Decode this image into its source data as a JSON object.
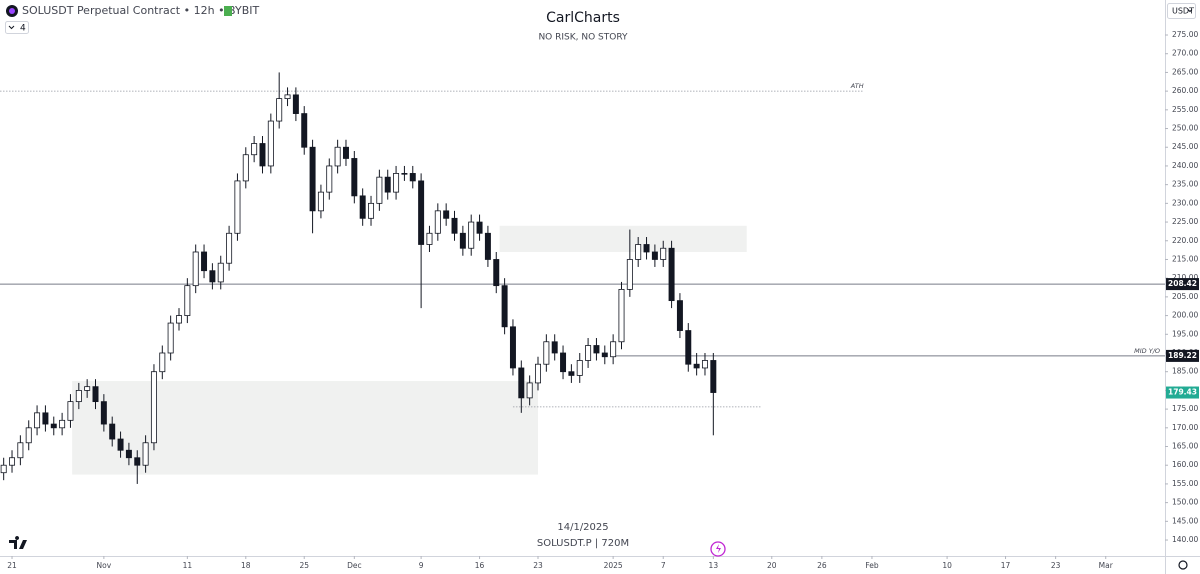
{
  "header": {
    "symbol": "SOLUSDT Perpetual Contract • 12h • BYBIT",
    "indicator_count": "4",
    "currency": "USDT"
  },
  "chart_data": {
    "type": "candlestick",
    "title": "CarlCharts",
    "subtitle": "NO RISK, NO STORY",
    "footer_date": "14/1/2025",
    "footer_symbol": "SOLUSDT.P | 720M",
    "up_color": "#ffffff",
    "down_color": "#131722",
    "outline_color": "#131722",
    "last_color": "#22ab94",
    "x": [
      -1,
      0,
      1,
      2,
      3,
      4,
      5,
      6,
      7,
      8,
      9,
      10,
      11,
      12,
      13,
      14,
      15,
      16,
      17,
      18,
      19,
      20,
      21,
      22,
      23,
      24,
      25,
      26,
      27,
      28,
      29,
      30,
      31,
      32,
      33,
      34,
      35,
      36,
      37,
      38,
      39,
      40,
      41,
      42,
      43,
      44,
      45,
      46,
      47,
      48,
      49,
      50,
      51,
      52,
      53,
      54,
      55,
      56,
      57,
      58,
      59,
      60,
      61,
      62,
      63,
      64,
      65,
      66,
      67,
      68,
      69,
      70,
      71,
      72,
      73,
      74,
      75,
      76,
      77,
      78,
      79,
      80,
      81,
      82,
      83,
      84
    ],
    "open": [
      158,
      160,
      162,
      166,
      170,
      174,
      171,
      170,
      172,
      177,
      180,
      181,
      177,
      171,
      167,
      164,
      162,
      160,
      166,
      185,
      190,
      198,
      200,
      208,
      217,
      212,
      209,
      214,
      222,
      236,
      243,
      246,
      240,
      252,
      258,
      259,
      254,
      245,
      228,
      233,
      240,
      245,
      242,
      232,
      226,
      230,
      237,
      233,
      238,
      238,
      236,
      219,
      222,
      228,
      226,
      222,
      218,
      225,
      222,
      215,
      208,
      197,
      186,
      178,
      182,
      187,
      193,
      190,
      185,
      184,
      188,
      192,
      190,
      189,
      193,
      207,
      215,
      219,
      217,
      215,
      218,
      204,
      196,
      187,
      186,
      188
    ],
    "high": [
      162,
      164,
      168,
      172,
      176,
      176,
      173,
      174,
      179,
      182,
      183,
      183,
      179,
      173,
      169,
      166,
      164,
      168,
      187,
      192,
      200,
      202,
      210,
      219,
      219,
      214,
      216,
      224,
      238,
      245,
      248,
      248,
      254,
      265,
      261,
      261,
      256,
      247,
      235,
      242,
      247,
      247,
      244,
      234,
      232,
      239,
      239,
      240,
      240,
      240,
      238,
      224,
      230,
      230,
      228,
      224,
      227,
      227,
      224,
      217,
      210,
      199,
      188,
      184,
      189,
      195,
      195,
      192,
      187,
      190,
      194,
      194,
      192,
      195,
      209,
      223,
      221,
      221,
      219,
      220,
      220,
      206,
      198,
      190,
      190,
      190
    ],
    "low": [
      156,
      158,
      160,
      164,
      168,
      169,
      168,
      168,
      170,
      175,
      178,
      175,
      169,
      165,
      162,
      160,
      155,
      158,
      164,
      183,
      188,
      196,
      198,
      206,
      210,
      207,
      207,
      212,
      220,
      234,
      241,
      238,
      238,
      250,
      256,
      252,
      243,
      222,
      226,
      231,
      238,
      240,
      230,
      224,
      224,
      228,
      231,
      231,
      236,
      234,
      202,
      217,
      220,
      224,
      220,
      216,
      216,
      220,
      213,
      206,
      195,
      184,
      174,
      176,
      180,
      185,
      188,
      183,
      182,
      182,
      186,
      188,
      187,
      187,
      191,
      205,
      213,
      215,
      213,
      213,
      202,
      194,
      185,
      184,
      184,
      168
    ],
    "close": [
      160,
      162,
      166,
      170,
      174,
      171,
      170,
      172,
      177,
      180,
      181,
      177,
      171,
      167,
      164,
      162,
      160,
      166,
      185,
      190,
      198,
      200,
      208,
      217,
      212,
      209,
      214,
      222,
      236,
      243,
      246,
      240,
      252,
      258,
      259,
      254,
      245,
      228,
      233,
      240,
      245,
      242,
      232,
      226,
      230,
      237,
      233,
      238,
      238,
      236,
      219,
      222,
      228,
      226,
      222,
      218,
      225,
      222,
      215,
      208,
      197,
      186,
      178,
      182,
      187,
      193,
      190,
      185,
      184,
      188,
      192,
      190,
      189,
      193,
      207,
      215,
      219,
      217,
      215,
      218,
      204,
      196,
      187,
      186,
      188,
      179.43
    ],
    "xlim": [
      -1.44,
      138.1
    ],
    "xticks": [
      {
        "value": 0,
        "label": "21"
      },
      {
        "value": 11,
        "label": "Nov"
      },
      {
        "value": 21,
        "label": "11"
      },
      {
        "value": 28,
        "label": "18"
      },
      {
        "value": 35,
        "label": "25"
      },
      {
        "value": 41,
        "label": "Dec"
      },
      {
        "value": 49,
        "label": "9"
      },
      {
        "value": 56,
        "label": "16"
      },
      {
        "value": 63,
        "label": "23"
      },
      {
        "value": 72,
        "label": "2025"
      },
      {
        "value": 78,
        "label": "7"
      },
      {
        "value": 84,
        "label": "13"
      },
      {
        "value": 91,
        "label": "20"
      },
      {
        "value": 97,
        "label": "26"
      },
      {
        "value": 103,
        "label": "Feb"
      },
      {
        "value": 112,
        "label": "10"
      },
      {
        "value": 119,
        "label": "17"
      },
      {
        "value": 125,
        "label": "23"
      },
      {
        "value": 131,
        "label": "Mar"
      }
    ],
    "ylim": [
      136,
      284.36
    ],
    "yticks": [
      {
        "value": 140,
        "label": "140.00"
      },
      {
        "value": 145,
        "label": "145.00"
      },
      {
        "value": 150,
        "label": "150.00"
      },
      {
        "value": 155,
        "label": "155.00"
      },
      {
        "value": 160,
        "label": "160.00"
      },
      {
        "value": 165,
        "label": "165.00"
      },
      {
        "value": 170,
        "label": "170.00"
      },
      {
        "value": 175,
        "label": "175.00"
      },
      {
        "value": 180,
        "label": "180.00"
      },
      {
        "value": 185,
        "label": "185.00"
      },
      {
        "value": 190,
        "label": "190.00"
      },
      {
        "value": 195,
        "label": "195.00"
      },
      {
        "value": 200,
        "label": "200.00"
      },
      {
        "value": 205,
        "label": "205.00"
      },
      {
        "value": 210,
        "label": "210.00"
      },
      {
        "value": 215,
        "label": "215.00"
      },
      {
        "value": 220,
        "label": "220.00"
      },
      {
        "value": 225,
        "label": "225.00"
      },
      {
        "value": 230,
        "label": "230.00"
      },
      {
        "value": 235,
        "label": "235.00"
      },
      {
        "value": 240,
        "label": "240.00"
      },
      {
        "value": 245,
        "label": "245.00"
      },
      {
        "value": 250,
        "label": "250.00"
      },
      {
        "value": 255,
        "label": "255.00"
      },
      {
        "value": 260,
        "label": "260.00"
      },
      {
        "value": 265,
        "label": "265.00"
      },
      {
        "value": 270,
        "label": "270.00"
      },
      {
        "value": 275,
        "label": "275.00"
      }
    ],
    "zones": [
      {
        "x": [
          7.2,
          63
        ],
        "y": [
          157.5,
          182.5
        ]
      },
      {
        "x": [
          58.4,
          88
        ],
        "y": [
          217,
          224
        ]
      }
    ],
    "lines": [
      {
        "value": 260,
        "name": "ATH",
        "dash": true,
        "to": 102
      },
      {
        "value": 208.42,
        "tag": true
      },
      {
        "value": 189.22,
        "name": "MID Y/O",
        "from": 72,
        "tag": true
      },
      {
        "value": 175.6,
        "dash": true,
        "from": 60,
        "to": 89.8
      }
    ]
  }
}
